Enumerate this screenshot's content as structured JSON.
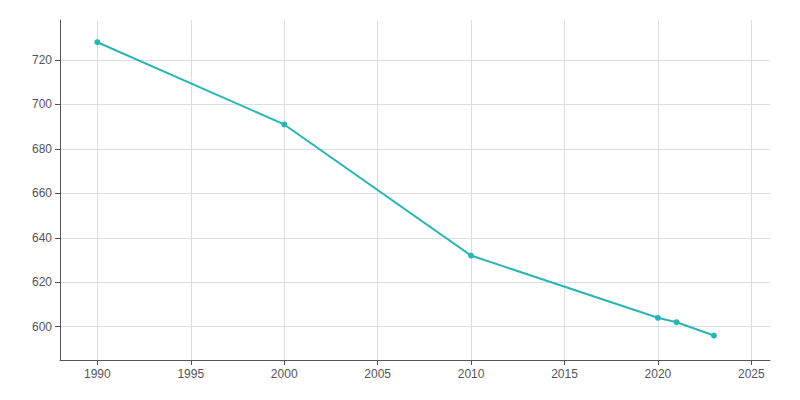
{
  "chart_data": {
    "type": "line",
    "x": [
      1990,
      2000,
      2010,
      2020,
      2021,
      2023
    ],
    "values": [
      728,
      691,
      632,
      604,
      602,
      596
    ],
    "color": "#2ab5b5",
    "marker": "circle",
    "xlim": [
      1988,
      2026
    ],
    "xticks": [
      1990,
      1995,
      2000,
      2005,
      2010,
      2015,
      2020,
      2025
    ],
    "ylim": [
      585,
      738
    ],
    "yticks": [
      600,
      620,
      640,
      660,
      680,
      700,
      720
    ],
    "grid": true
  }
}
